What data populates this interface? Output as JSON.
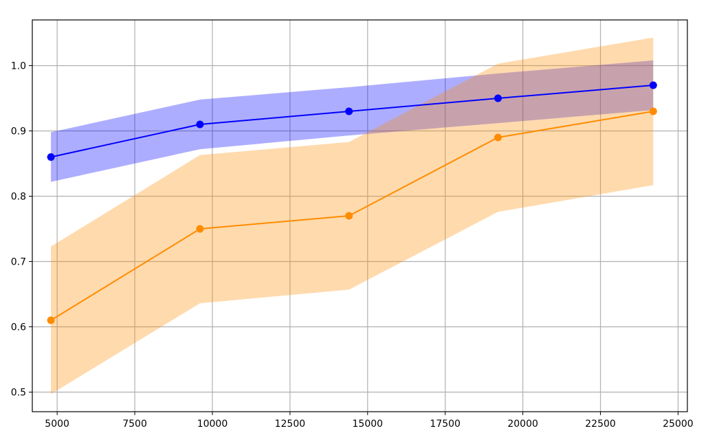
{
  "chart_data": {
    "type": "line",
    "title": "",
    "xlabel": "",
    "ylabel": "",
    "xlim": [
      4200,
      25300
    ],
    "ylim": [
      0.47,
      1.07
    ],
    "x_ticks": [
      5000,
      7500,
      10000,
      12500,
      15000,
      17500,
      20000,
      22500,
      25000
    ],
    "y_ticks": [
      0.5,
      0.6,
      0.7,
      0.8,
      0.9,
      1.0
    ],
    "grid": true,
    "x": [
      4800,
      9600,
      14400,
      19200,
      24200
    ],
    "series": [
      {
        "color": "#0000ff",
        "band_color": "#aaaafd",
        "values": [
          0.86,
          0.91,
          0.93,
          0.95,
          0.97
        ],
        "band_lower": [
          0.822,
          0.872,
          0.893,
          0.912,
          0.932
        ],
        "band_upper": [
          0.898,
          0.948,
          0.967,
          0.988,
          1.008
        ]
      },
      {
        "color": "#ff8c00",
        "band_color": "#fed4ab",
        "values": [
          0.61,
          0.75,
          0.77,
          0.89,
          0.93
        ],
        "band_lower": [
          0.497,
          0.636,
          0.657,
          0.776,
          0.817
        ],
        "band_upper": [
          0.723,
          0.863,
          0.883,
          1.003,
          1.043
        ]
      }
    ]
  }
}
